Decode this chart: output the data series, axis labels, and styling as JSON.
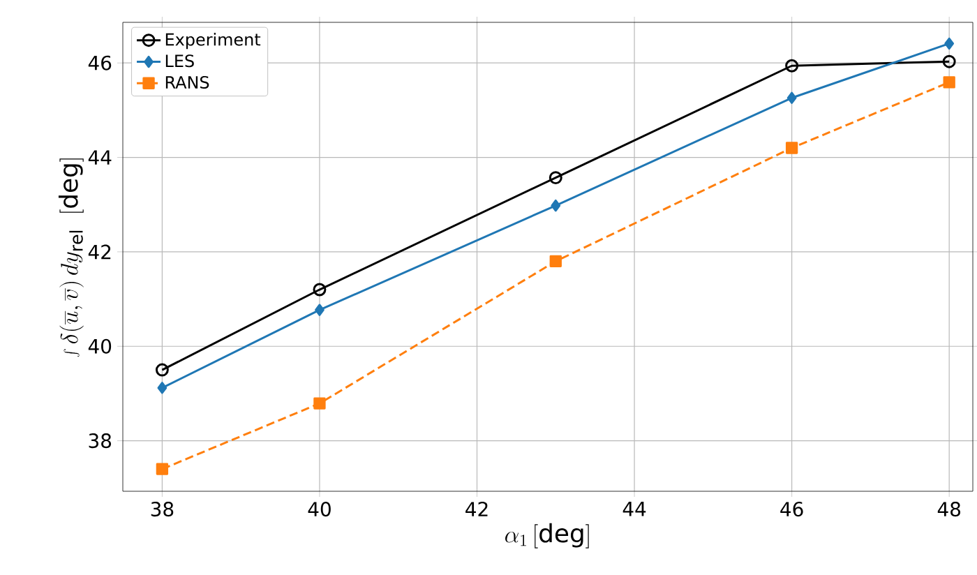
{
  "chart_data": {
    "type": "line",
    "xlabel": "\\alpha_1\\,\\mathrm{[deg]}",
    "ylabel": "\\int \\delta(\\overline{u},\\overline{v})\\,dy_{\\mathrm{rel}}\\;\\;\\mathrm{[deg]}",
    "x": [
      38,
      40,
      43,
      46,
      48
    ],
    "series": [
      {
        "name": "Experiment",
        "color": "#000000",
        "marker": "circle",
        "line_style": "solid",
        "values": [
          39.5,
          41.2,
          43.57,
          45.94,
          46.03
        ]
      },
      {
        "name": "LES",
        "color": "#1f77b4",
        "marker": "diamond",
        "line_style": "solid",
        "values": [
          39.12,
          40.77,
          42.98,
          45.26,
          46.41
        ]
      },
      {
        "name": "RANS",
        "color": "#ff7f0e",
        "marker": "square",
        "line_style": "dashed",
        "values": [
          37.4,
          38.79,
          41.8,
          44.2,
          45.59
        ]
      }
    ],
    "xlim": [
      37.5,
      48.3
    ],
    "ylim": [
      36.93,
      46.86
    ],
    "xticks": [
      38,
      40,
      42,
      44,
      46,
      48
    ],
    "yticks": [
      38,
      40,
      42,
      44,
      46
    ],
    "grid": true,
    "legend": "top left"
  }
}
